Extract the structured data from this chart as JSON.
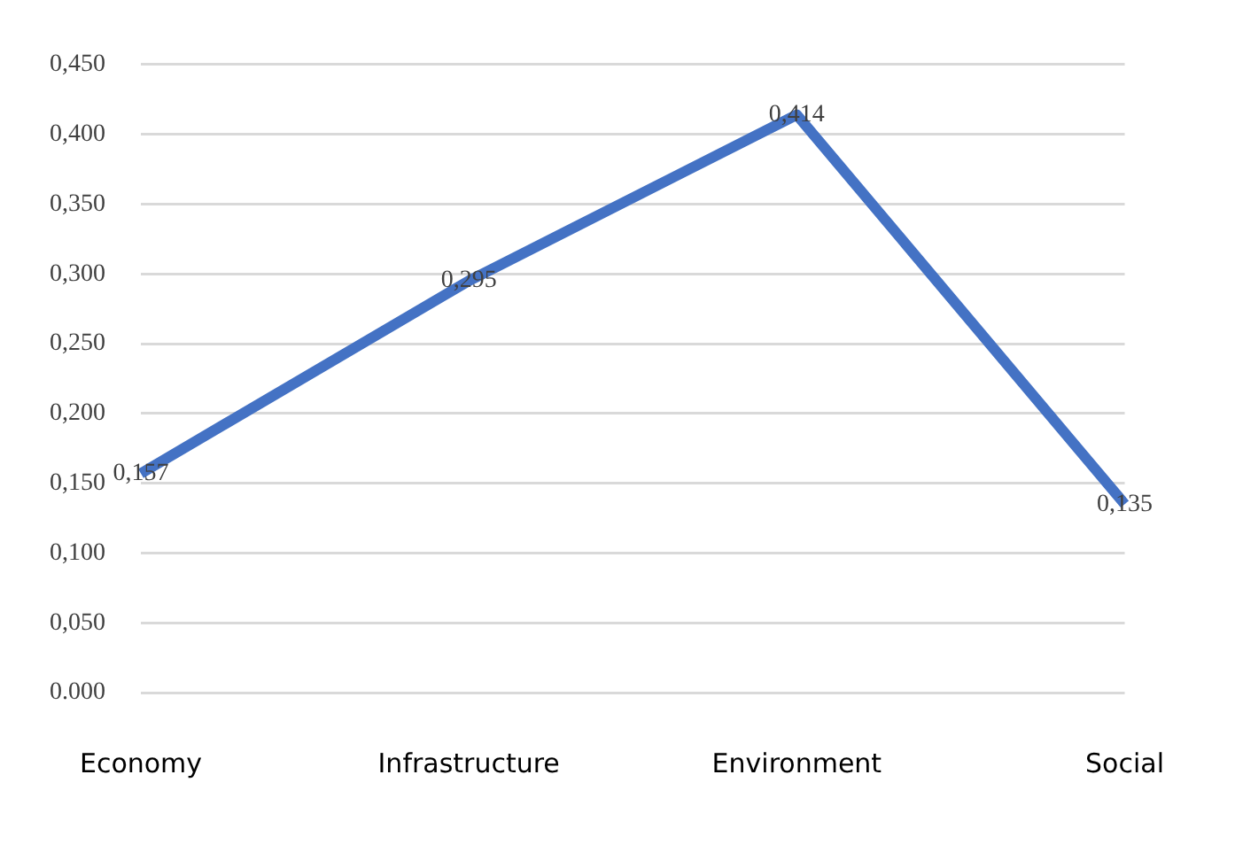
{
  "chart_data": {
    "type": "line",
    "categories": [
      "Economy",
      "Infrastructure",
      "Environment",
      "Social"
    ],
    "series": [
      {
        "color": "#4472c4",
        "values": [
          0.157,
          0.295,
          0.414,
          0.135
        ],
        "value_labels": [
          "0,157",
          "0,295",
          "0,414",
          "0,135"
        ]
      }
    ],
    "ylim": [
      0,
      0.45
    ],
    "yticks": [
      {
        "value": 0,
        "label": "0.000"
      },
      {
        "value": 0.05,
        "label": "0,050"
      },
      {
        "value": 0.1,
        "label": "0,100"
      },
      {
        "value": 0.15,
        "label": "0,150"
      },
      {
        "value": 0.2,
        "label": "0,200"
      },
      {
        "value": 0.25,
        "label": "0,250"
      },
      {
        "value": 0.3,
        "label": "0,300"
      },
      {
        "value": 0.35,
        "label": "0,350"
      },
      {
        "value": 0.4,
        "label": "0,400"
      },
      {
        "value": 0.45,
        "label": "0,450"
      }
    ],
    "grid": "y",
    "legend": false,
    "marker": "none",
    "line_style": "solid"
  }
}
